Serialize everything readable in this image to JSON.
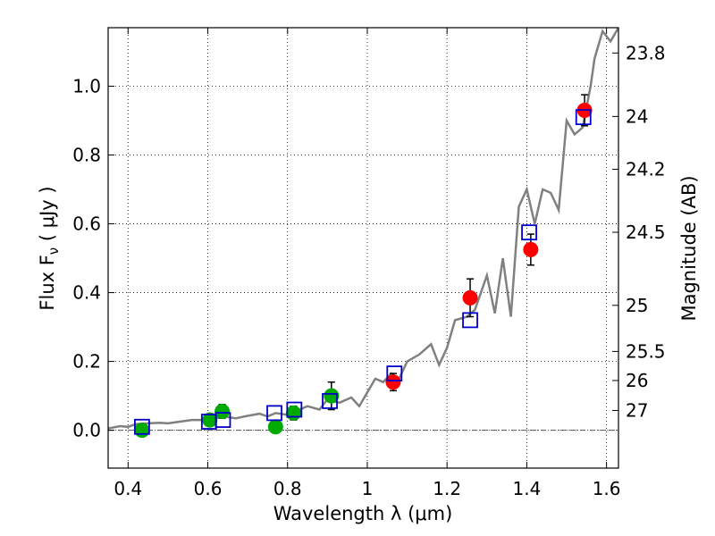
{
  "chart_data": {
    "type": "scatter",
    "xlabel": "Wavelength  λ (μm)",
    "ylabel": "Flux  F",
    "ylabel_sub": "ν",
    "ylabel_unit": "  ( μJy )",
    "y2label": "Magnitude (AB)",
    "xlim": [
      0.35,
      1.63
    ],
    "ylim": [
      -0.11,
      1.17
    ],
    "xticks": [
      0.4,
      0.6,
      0.8,
      1.0,
      1.2,
      1.4,
      1.6
    ],
    "xtick_labels": [
      "0.4",
      "0.6",
      "0.8",
      "1",
      "1.2",
      "1.4",
      "1.6"
    ],
    "yticks": [
      0.0,
      0.2,
      0.4,
      0.6,
      0.8,
      1.0
    ],
    "ytick_labels": [
      "0.0",
      "0.2",
      "0.4",
      "0.6",
      "0.8",
      "1.0"
    ],
    "y2ticks": [
      23.8,
      24,
      24.2,
      24.5,
      25,
      25.5,
      26,
      27
    ],
    "y2tick_labels": [
      "23.8",
      "24",
      "24.2",
      "24.5",
      "25",
      "25.5",
      "26",
      "27"
    ],
    "grid": true,
    "zero_line": true,
    "colors": {
      "model_line": "#808080",
      "optical_points": "#00aa00",
      "nir_points": "#ff0000",
      "model_boxes": "#0000cc",
      "error_bars": "#000000"
    },
    "series": [
      {
        "kind": "line",
        "x": [
          0.35,
          0.38,
          0.4,
          0.42,
          0.45,
          0.48,
          0.5,
          0.53,
          0.56,
          0.59,
          0.62,
          0.64,
          0.67,
          0.7,
          0.73,
          0.75,
          0.77,
          0.8,
          0.82,
          0.85,
          0.88,
          0.9,
          0.93,
          0.96,
          0.98,
          1.0,
          1.02,
          1.04,
          1.06,
          1.08,
          1.1,
          1.13,
          1.16,
          1.18,
          1.2,
          1.22,
          1.25,
          1.27,
          1.3,
          1.32,
          1.34,
          1.36,
          1.38,
          1.4,
          1.42,
          1.44,
          1.46,
          1.48,
          1.5,
          1.52,
          1.54,
          1.56,
          1.57,
          1.59,
          1.61,
          1.63
        ],
        "y": [
          0.005,
          0.012,
          0.01,
          0.018,
          0.02,
          0.022,
          0.02,
          0.025,
          0.03,
          0.03,
          0.035,
          0.04,
          0.035,
          0.042,
          0.048,
          0.04,
          0.05,
          0.045,
          0.055,
          0.07,
          0.06,
          0.09,
          0.08,
          0.095,
          0.07,
          0.11,
          0.15,
          0.14,
          0.165,
          0.15,
          0.2,
          0.22,
          0.25,
          0.19,
          0.24,
          0.32,
          0.33,
          0.35,
          0.45,
          0.34,
          0.5,
          0.33,
          0.65,
          0.7,
          0.6,
          0.7,
          0.69,
          0.64,
          0.9,
          0.86,
          0.88,
          1.0,
          1.08,
          1.16,
          1.13,
          1.17
        ]
      },
      {
        "kind": "points",
        "x": [
          0.435,
          0.605,
          0.636,
          0.77,
          0.815,
          0.91
        ],
        "y": [
          0.0,
          0.03,
          0.055,
          0.01,
          0.05,
          0.1
        ],
        "err": [
          0.015,
          0.015,
          0.02,
          0.015,
          0.02,
          0.04
        ]
      },
      {
        "kind": "points",
        "x": [
          1.065,
          1.258,
          1.41,
          1.545
        ],
        "y": [
          0.14,
          0.385,
          0.525,
          0.93
        ],
        "err": [
          0.025,
          0.055,
          0.045,
          0.045
        ]
      },
      {
        "kind": "boxes",
        "x": [
          0.435,
          0.603,
          0.638,
          0.767,
          0.817,
          0.906,
          1.068,
          1.258,
          1.406,
          1.542
        ],
        "y": [
          0.01,
          0.025,
          0.03,
          0.05,
          0.06,
          0.085,
          0.165,
          0.32,
          0.575,
          0.91
        ]
      }
    ]
  }
}
